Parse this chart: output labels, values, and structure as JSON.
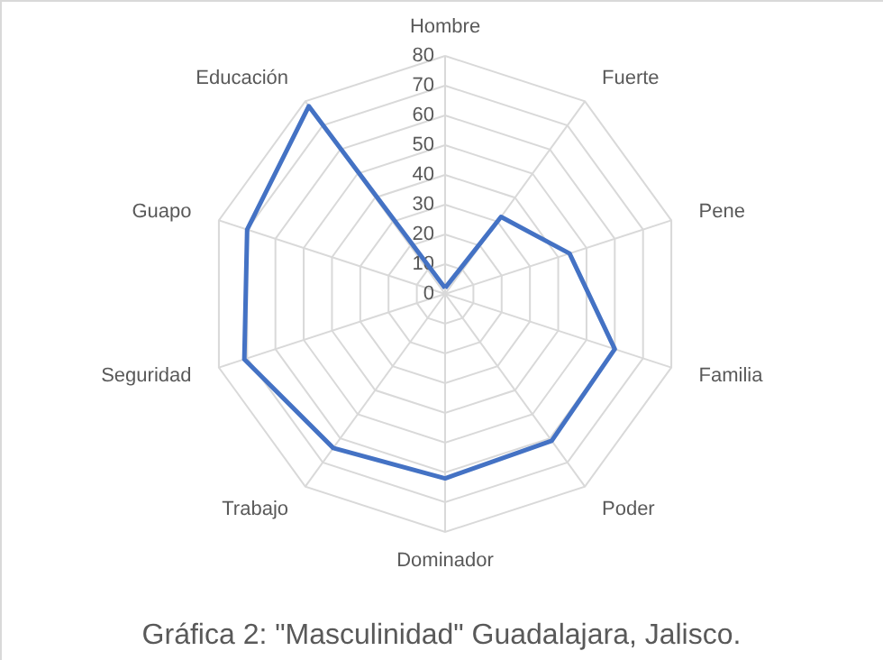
{
  "chart_data": {
    "type": "radar",
    "title": "Gráfica 2: \"Masculinidad\" Guadalajara, Jalisco.",
    "categories": [
      "Hombre",
      "Fuerte",
      "Pene",
      "Familia",
      "Poder",
      "Dominador",
      "Trabajo",
      "Seguridad",
      "Guapo",
      "Educación"
    ],
    "series": [
      {
        "color": "#4472c4",
        "values": [
          2,
          32,
          44,
          60,
          61,
          62,
          64,
          71,
          70,
          78
        ]
      }
    ],
    "ylim": [
      0,
      80
    ],
    "yticks": [
      0,
      10,
      20,
      30,
      40,
      50,
      60,
      70,
      80
    ],
    "grid": true,
    "marker": "none"
  }
}
